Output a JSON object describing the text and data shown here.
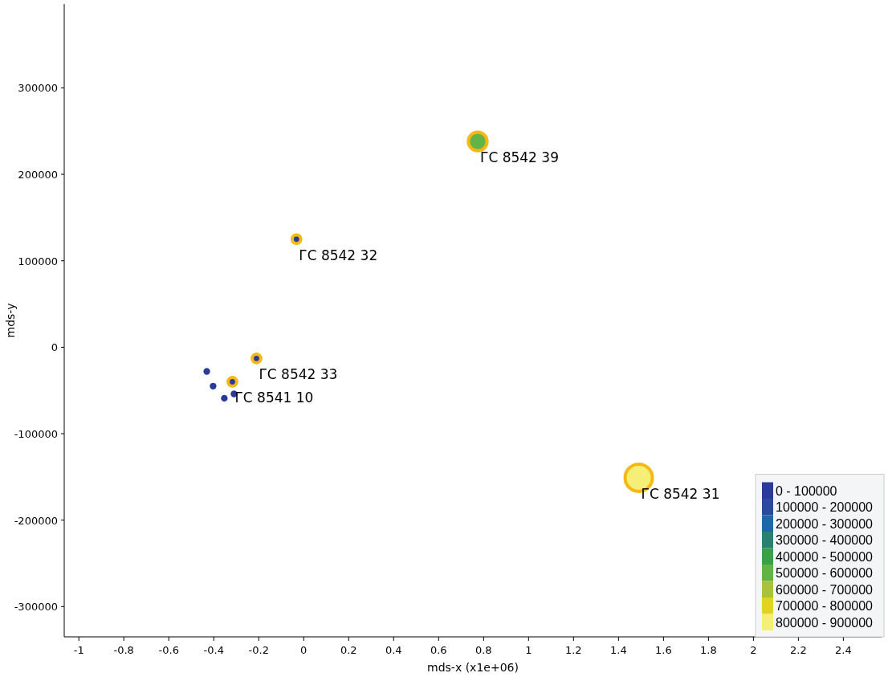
{
  "chart_data": {
    "type": "bubble",
    "xlabel": "mds-x (x1e+06)",
    "ylabel": "mds-y",
    "xlim": [
      -1.065,
      2.57
    ],
    "ylim": [
      -335000,
      397000
    ],
    "xticks": [
      -1,
      -0.8,
      -0.6,
      -0.4,
      -0.2,
      0,
      0.2,
      0.4,
      0.6,
      0.8,
      1,
      1.2,
      1.4,
      1.6,
      1.8,
      2,
      2.2,
      2.4
    ],
    "yticks": [
      -300000,
      -200000,
      -100000,
      0,
      100000,
      200000,
      300000
    ],
    "grid": false,
    "legend": "bottom right",
    "marker": "circle",
    "series": [
      {
        "name": "0 - 100000",
        "color": "#2a3a9a",
        "x": [
          -0.032,
          -0.21,
          -0.317,
          -0.431,
          -0.403,
          -0.353,
          -0.31
        ],
        "values": [
          125000,
          -13000,
          -40000,
          -28000,
          -45000,
          -59000,
          -54000
        ],
        "sizes": [
          0.1,
          0.1,
          0.1,
          0.06,
          0.06,
          0.06,
          0.06
        ]
      },
      {
        "name": "100000 - 200000",
        "color": "#2b4a9e"
      },
      {
        "name": "200000 - 300000",
        "color": "#1f68a8"
      },
      {
        "name": "300000 - 400000",
        "color": "#2a8070"
      },
      {
        "name": "400000 - 500000",
        "color": "#3aa048"
      },
      {
        "name": "500000 - 600000",
        "color": "#63b446",
        "x": [
          0.774
        ],
        "values": [
          238000
        ],
        "sizes": [
          0.47
        ]
      },
      {
        "name": "600000 - 700000",
        "color": "#a8c23a"
      },
      {
        "name": "700000 - 800000",
        "color": "#e0d420"
      },
      {
        "name": "800000 - 900000",
        "color": "#f5ef78",
        "x": [
          1.49
        ],
        "values": [
          -151000
        ],
        "sizes": [
          1
        ]
      }
    ],
    "annotations": [
      {
        "text": "ГС 8542 39",
        "x": 0.774,
        "y": 238000
      },
      {
        "text": "ГС 8542 32",
        "x": -0.032,
        "y": 125000
      },
      {
        "text": "ГС 8542 33",
        "x": -0.21,
        "y": -13000
      },
      {
        "text": "ГС 8541 10",
        "x": -0.317,
        "y": -40000
      },
      {
        "text": "ГС 8542 31",
        "x": 1.49,
        "y": -151000
      }
    ]
  }
}
